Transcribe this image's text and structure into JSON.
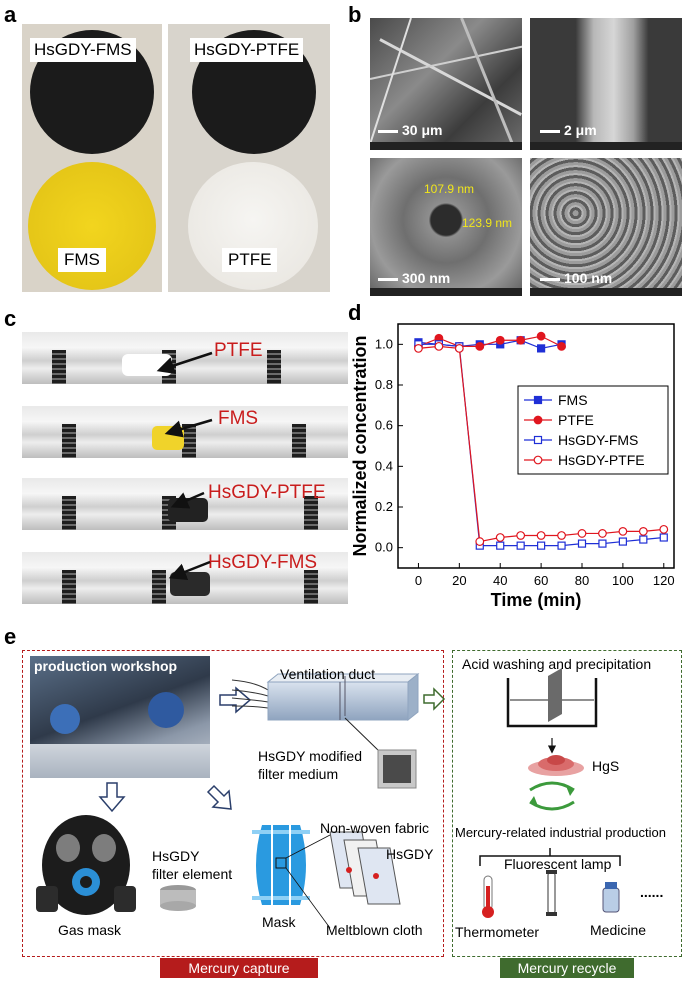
{
  "panels": {
    "a": {
      "letter": "a",
      "left_label_top": "HsGDY-FMS",
      "left_label_bottom": "FMS",
      "right_label_top": "HsGDY-PTFE",
      "right_label_bottom": "PTFE"
    },
    "b": {
      "letter": "b",
      "scales": [
        "30 μm",
        "2 μm",
        "300 nm",
        "100 nm"
      ],
      "measure_1": "107.9 nm",
      "measure_2": "123.9 nm"
    },
    "c": {
      "letter": "c",
      "labels": [
        "PTFE",
        "FMS",
        "HsGDY-PTFE",
        "HsGDY-FMS"
      ]
    },
    "d": {
      "letter": "d"
    },
    "e": {
      "letter": "e",
      "workshop": "production workshop",
      "duct": "Ventilation duct",
      "filter_medium_1": "HsGDY modified",
      "filter_medium_2": "filter medium",
      "filter_element_1": "HsGDY",
      "filter_element_2": "filter element",
      "gas_mask": "Gas mask",
      "mask": "Mask",
      "nonwoven": "Non-woven fabric",
      "hsgdy": "HsGDY",
      "meltblown": "Meltblown cloth",
      "capture_banner": "Mercury capture",
      "acid": "Acid washing and precipitation",
      "hgs": "HgS",
      "mercury_industrial": "Mercury-related industrial production",
      "fluorescent": "Fluorescent lamp",
      "thermometer": "Thermometer",
      "medicine": "Medicine",
      "ellipsis": "......",
      "recycle_banner": "Mercury recycle"
    }
  },
  "colors": {
    "capture_red": "#b51c1c",
    "recycle_green": "#3f6b2e",
    "label_red": "#c91d1d"
  },
  "chart_data": {
    "type": "line",
    "xlabel": "Time (min)",
    "ylabel": "Normalized  concentration",
    "xlim": [
      -10,
      125
    ],
    "ylim": [
      -0.1,
      1.1
    ],
    "xticks": [
      0,
      20,
      40,
      60,
      80,
      100,
      120
    ],
    "yticks": [
      0.0,
      0.2,
      0.4,
      0.6,
      0.8,
      1.0
    ],
    "legend_position": "middle-right",
    "series": [
      {
        "name": "FMS",
        "color": "#1f2fd6",
        "marker": "square-filled",
        "x": [
          0,
          10,
          20,
          30,
          40,
          50,
          60,
          70
        ],
        "y": [
          1.01,
          1.0,
          0.99,
          1.0,
          1.0,
          1.02,
          0.98,
          1.0
        ]
      },
      {
        "name": "PTFE",
        "color": "#e0161f",
        "marker": "circle-filled",
        "x": [
          0,
          10,
          20,
          30,
          40,
          50,
          60,
          70
        ],
        "y": [
          0.99,
          1.03,
          0.99,
          0.99,
          1.02,
          1.02,
          1.04,
          0.99
        ]
      },
      {
        "name": "HsGDY-FMS",
        "color": "#1f2fd6",
        "marker": "square-open",
        "x": [
          0,
          10,
          20,
          30,
          40,
          50,
          60,
          70,
          80,
          90,
          100,
          110,
          120
        ],
        "y": [
          1.0,
          1.0,
          0.99,
          0.01,
          0.01,
          0.01,
          0.01,
          0.01,
          0.02,
          0.02,
          0.03,
          0.04,
          0.05
        ]
      },
      {
        "name": "HsGDY-PTFE",
        "color": "#e0161f",
        "marker": "circle-open",
        "x": [
          0,
          10,
          20,
          30,
          40,
          50,
          60,
          70,
          80,
          90,
          100,
          110,
          120
        ],
        "y": [
          0.98,
          0.99,
          0.98,
          0.03,
          0.05,
          0.06,
          0.06,
          0.06,
          0.07,
          0.07,
          0.08,
          0.08,
          0.09
        ]
      }
    ]
  }
}
